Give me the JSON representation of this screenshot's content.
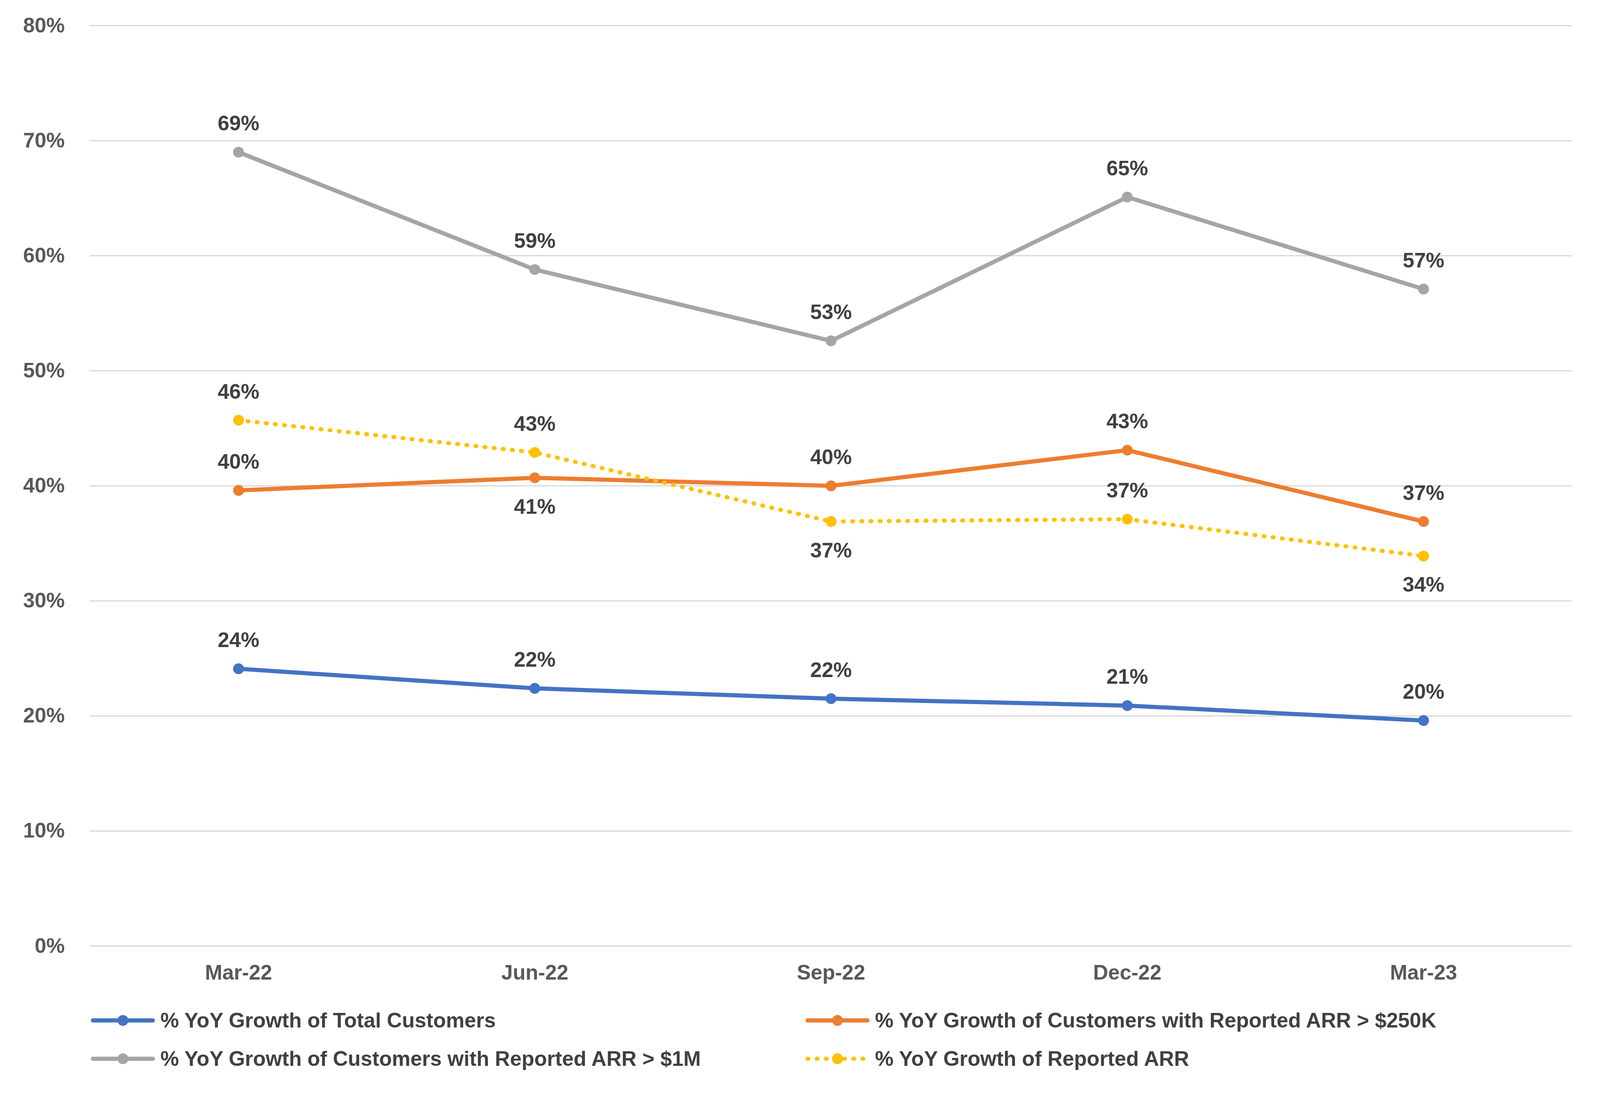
{
  "chart_data": {
    "type": "line",
    "categories": [
      "Mar-22",
      "Jun-22",
      "Sep-22",
      "Dec-22",
      "Mar-23"
    ],
    "ylim": [
      0,
      80
    ],
    "yticks": [
      {
        "value": 0,
        "label": "0%"
      },
      {
        "value": 10,
        "label": "10%"
      },
      {
        "value": 20,
        "label": "20%"
      },
      {
        "value": 30,
        "label": "30%"
      },
      {
        "value": 40,
        "label": "40%"
      },
      {
        "value": 50,
        "label": "50%"
      },
      {
        "value": 60,
        "label": "60%"
      },
      {
        "value": 70,
        "label": "70%"
      },
      {
        "value": 80,
        "label": "80%"
      }
    ],
    "grid": true,
    "data_labels": true,
    "legend": "bottom",
    "series": [
      {
        "name": "% YoY Growth of Total Customers",
        "color": "#4472c4",
        "line_style": "solid",
        "marker": "circle",
        "values": [
          24.1,
          22.4,
          21.5,
          20.9,
          19.6
        ],
        "value_labels": [
          "24%",
          "22%",
          "22%",
          "21%",
          "20%"
        ]
      },
      {
        "name": "% YoY Growth of Customers with Reported ARR > $250K",
        "color": "#ed7d31",
        "line_style": "solid",
        "marker": "circle",
        "values": [
          39.6,
          40.7,
          40.0,
          43.1,
          36.9
        ],
        "value_labels": [
          "40%",
          "41%",
          "40%",
          "43%",
          "37%"
        ]
      },
      {
        "name": "% YoY Growth of Customers with Reported ARR > $1M",
        "color": "#a5a5a5",
        "line_style": "solid",
        "marker": "circle",
        "values": [
          69.0,
          58.8,
          52.6,
          65.1,
          57.1
        ],
        "value_labels": [
          "69%",
          "59%",
          "53%",
          "65%",
          "57%"
        ]
      },
      {
        "name": "% YoY Growth of Reported ARR",
        "color": "#ffc000",
        "line_style": "dotted",
        "marker": "circle",
        "values": [
          45.7,
          42.9,
          36.9,
          37.1,
          33.9
        ],
        "value_labels": [
          "46%",
          "43%",
          "37%",
          "37%",
          "34%"
        ]
      }
    ]
  }
}
